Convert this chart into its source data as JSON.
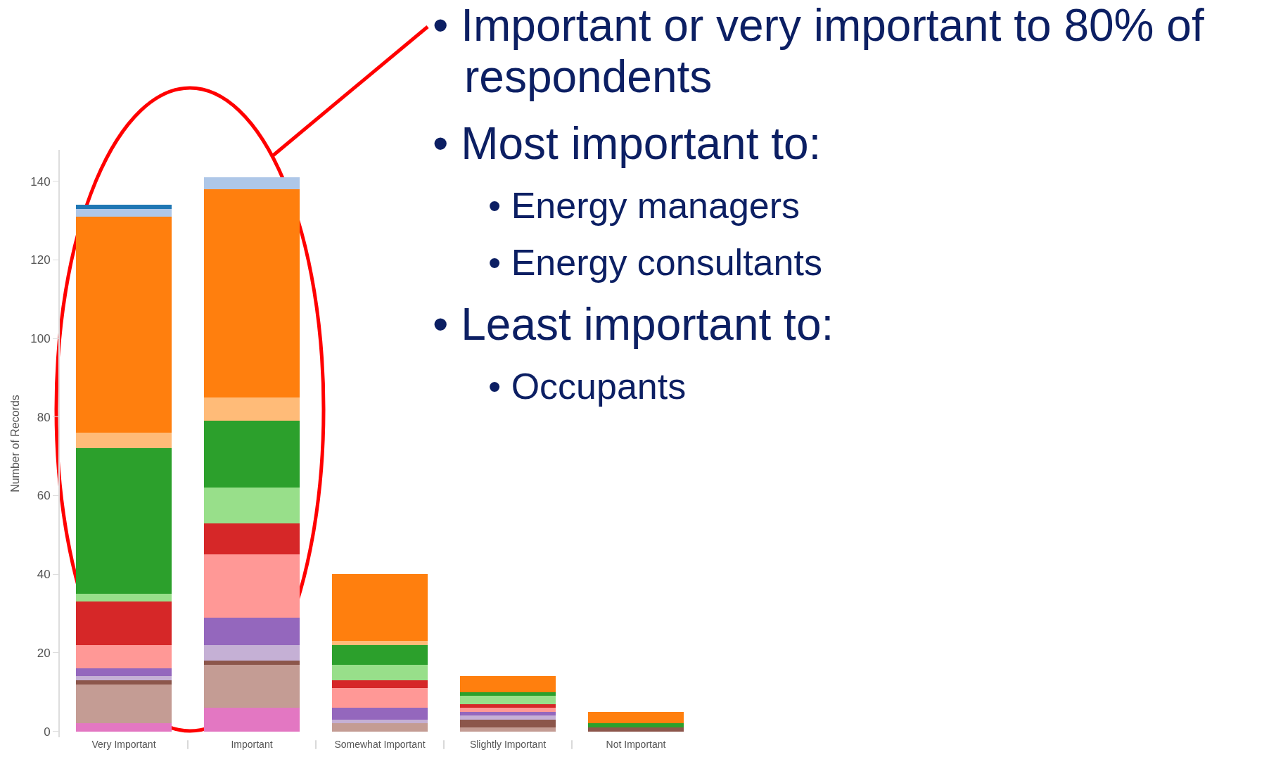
{
  "chart_data": {
    "type": "bar",
    "stacked": true,
    "ylabel": "Number of Records",
    "categories": [
      "Very Important",
      "Important",
      "Somewhat Important",
      "Slightly Important",
      "Not Important"
    ],
    "series": [
      {
        "color": "#e377c2",
        "values": [
          2,
          6,
          0,
          0,
          0
        ]
      },
      {
        "color": "#c49c94",
        "values": [
          10,
          11,
          2,
          1,
          0
        ]
      },
      {
        "color": "#8c564b",
        "values": [
          1,
          1,
          0,
          2,
          1
        ]
      },
      {
        "color": "#c5b0d5",
        "values": [
          1,
          4,
          1,
          1,
          0
        ]
      },
      {
        "color": "#9467bd",
        "values": [
          2,
          7,
          3,
          1,
          0
        ]
      },
      {
        "color": "#ff9896",
        "values": [
          6,
          16,
          5,
          1,
          0
        ]
      },
      {
        "color": "#d62728",
        "values": [
          11,
          8,
          2,
          1,
          0
        ]
      },
      {
        "color": "#98df8a",
        "values": [
          2,
          9,
          4,
          2,
          0
        ]
      },
      {
        "color": "#2ca02c",
        "values": [
          37,
          17,
          5,
          1,
          1
        ]
      },
      {
        "color": "#ffbb78",
        "values": [
          4,
          6,
          1,
          0,
          0
        ]
      },
      {
        "color": "#ff7f0e",
        "values": [
          55,
          53,
          17,
          4,
          3
        ]
      },
      {
        "color": "#aec7e8",
        "values": [
          2,
          3,
          0,
          0,
          0
        ]
      },
      {
        "color": "#1f77b4",
        "values": [
          1,
          0,
          0,
          0,
          0
        ]
      }
    ],
    "ylim": [
      -1.5,
      148
    ],
    "yticks": [
      0,
      20,
      40,
      60,
      80,
      100,
      120,
      140
    ],
    "grid": false,
    "annotations": [
      "• Important or very important to 80% of respondents",
      "• Most important to:",
      "• Energy managers",
      "• Energy consultants",
      "• Least important to:",
      "• Occupants"
    ]
  }
}
